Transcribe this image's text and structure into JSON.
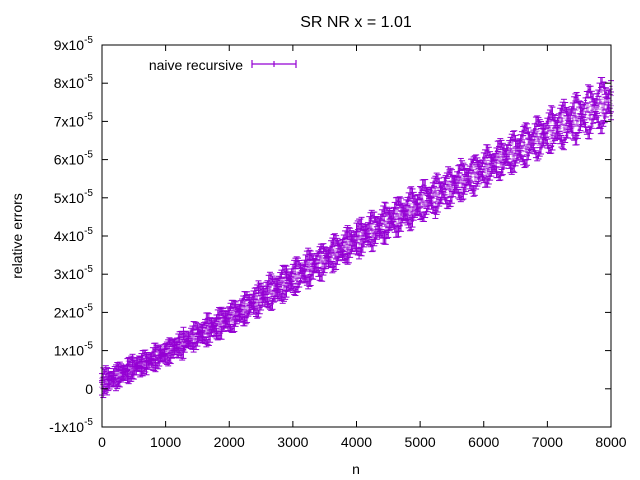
{
  "chart_data": {
    "type": "scatter",
    "title": "SR NR x = 1.01",
    "xlabel": "n",
    "ylabel": "relative errors",
    "xlim": [
      0,
      8000
    ],
    "ylim": [
      -1e-05,
      9e-05
    ],
    "x_ticks": [
      0,
      1000,
      2000,
      3000,
      4000,
      5000,
      6000,
      7000,
      8000
    ],
    "x_tick_labels": [
      "0",
      "1000",
      "2000",
      "3000",
      "4000",
      "5000",
      "6000",
      "7000",
      "8000"
    ],
    "y_ticks": [
      -1e-05,
      0,
      1e-05,
      2e-05,
      3e-05,
      4e-05,
      5e-05,
      6e-05,
      7e-05,
      8e-05,
      9e-05
    ],
    "y_tick_labels": [
      {
        "mant": "-1x10",
        "exp": "-5"
      },
      {
        "mant": "0",
        "exp": ""
      },
      {
        "mant": "1x10",
        "exp": "-5"
      },
      {
        "mant": "2x10",
        "exp": "-5"
      },
      {
        "mant": "3x10",
        "exp": "-5"
      },
      {
        "mant": "4x10",
        "exp": "-5"
      },
      {
        "mant": "5x10",
        "exp": "-5"
      },
      {
        "mant": "6x10",
        "exp": "-5"
      },
      {
        "mant": "7x10",
        "exp": "-5"
      },
      {
        "mant": "8x10",
        "exp": "-5"
      },
      {
        "mant": "9x10",
        "exp": "-5"
      }
    ],
    "grid": false,
    "legend_position": "top-left",
    "series": [
      {
        "name": "naive recursive",
        "color": "#9400d3",
        "style": "points with y error bars",
        "sample_n": [
          0,
          1000,
          2000,
          3000,
          4000,
          5000,
          6000,
          7000,
          8000
        ],
        "sample_upper_band": [
          4e-06,
          1.2e-05,
          2.2e-05,
          3.3e-05,
          4.3e-05,
          5.3e-05,
          6.2e-05,
          7.2e-05,
          8.2e-05
        ],
        "sample_lower_band": [
          -1e-06,
          7e-06,
          1.5e-05,
          2.5e-05,
          3.5e-05,
          4.4e-05,
          5.3e-05,
          6.2e-05,
          6.9e-05
        ],
        "oscillation_period_n": 200,
        "error_bar_halfwidth": 1.2e-06
      }
    ]
  }
}
